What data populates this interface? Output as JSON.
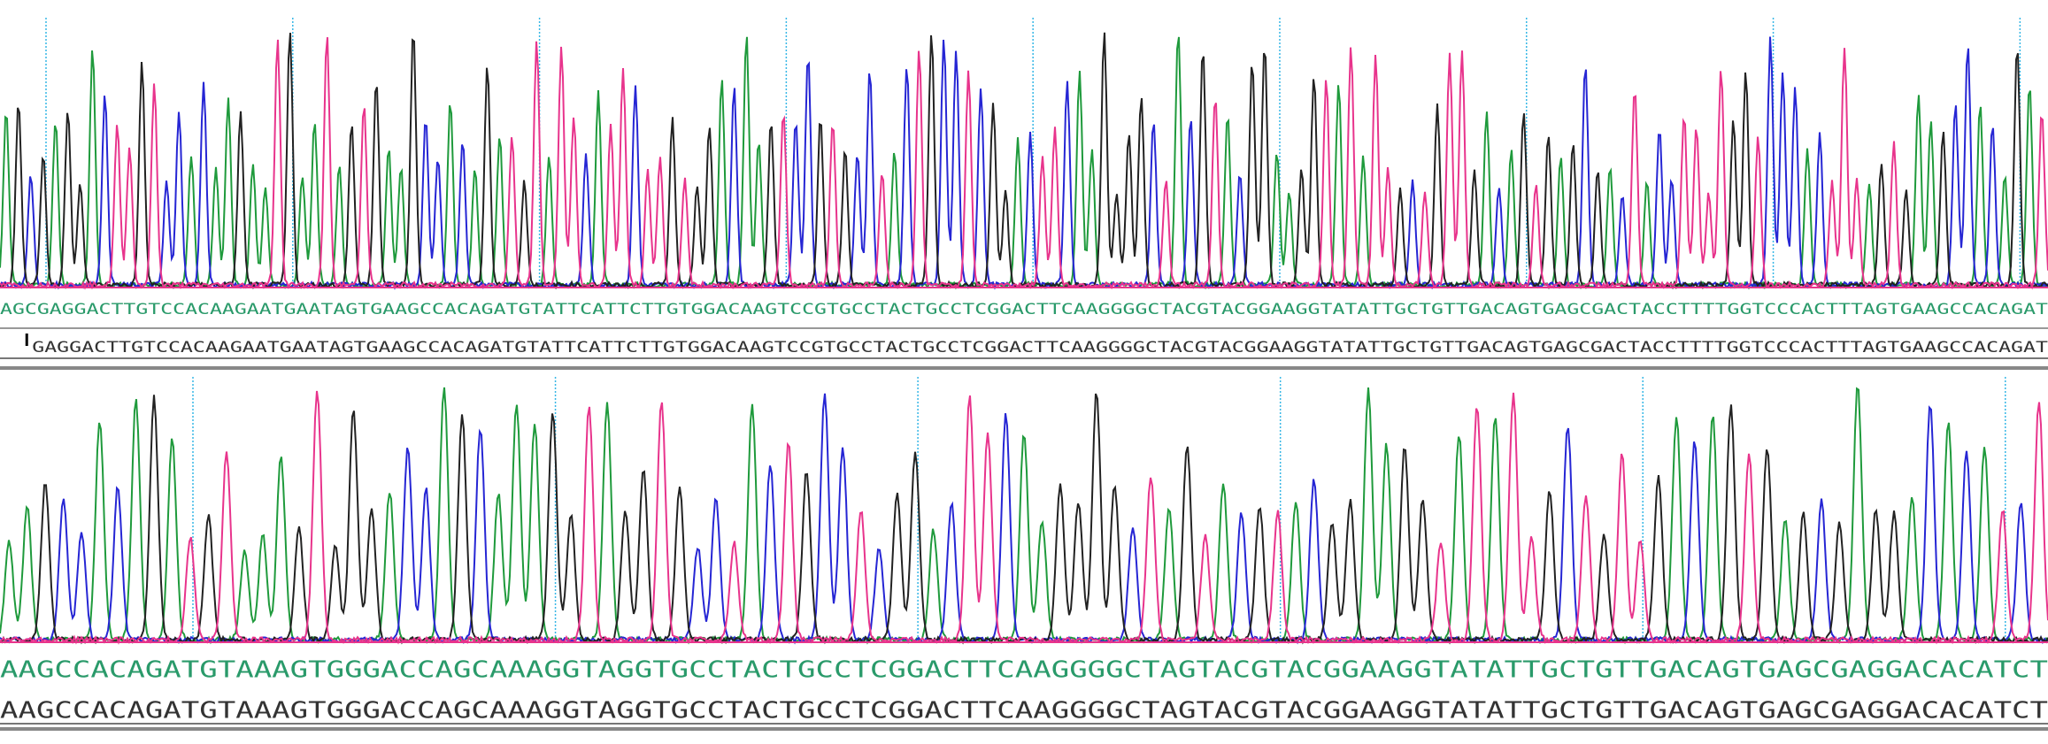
{
  "panels": [
    {
      "read": "AGCGAGGACTTGTCCACAAGAATGAATAGTGAAGCCACAGATGTATTCATTCTTGTGGACAAGTCCGTGCCTACTGCCTCGGACTTCAAGGGGCTACGTACGGAAGGTATATTGCTGTTGACAGTGAGCGACTACCTTTTGGTCCCACTTTAGTGAAGCCACAGAT",
      "reference": "GAGGACTTGTCCACAAGAATGAATAGTGAAGCCACAGATGTATTCATTCTTGTGGACAAGTCCGTGCCTACTGCCTCGGACTTCAAGGGGCTACGTACGGAAGGTATATTGCTGTTGACAGTGAGCGACTACCTTTTGGTCCCACTTTAGTGAAGCCACAGAT"
    },
    {
      "read": "AAGCCACAGATGTAAAGTGGGACCAGCAAAGGTAGGTGCCTACTGCCTCGGACTTCAAGGGGCTAGTACGTACGGAAGGTATATTGCTGTTGACAGTGAGCGAGGACACATCT",
      "reference": "AAGCCACAGATGTAAAGTGGGACCAGCAAAGGTAGGTGCCTACTGCCTCGGACTTCAAGGGGCTAGTACGTACGGAAGGTATATTGCTGTTGACAGTGAGCGAGGACACATCT"
    }
  ],
  "base_colors": {
    "A": "#1f9a3c",
    "C": "#2626d4",
    "G": "#222222",
    "T": "#e8348c"
  }
}
